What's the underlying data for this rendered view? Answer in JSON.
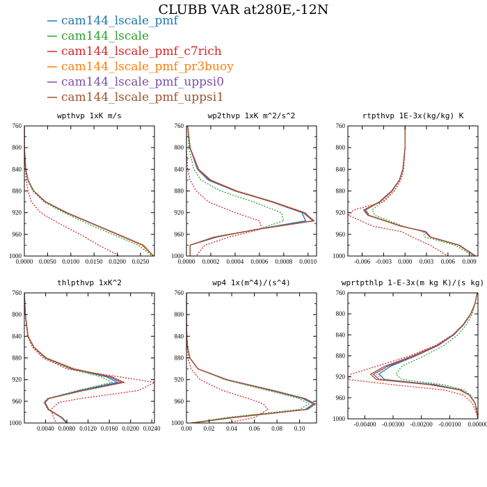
{
  "title": "CLUBB VAR at280E,-12N",
  "legend": [
    {
      "name": "cam144_lscale_pmf",
      "color": "#1f77b4"
    },
    {
      "name": "cam144_lscale",
      "color": "#2ca02c"
    },
    {
      "name": "cam144_lscale_pmf_c7rich",
      "color": "#d62728"
    },
    {
      "name": "cam144_lscale_pmf_pr3buoy",
      "color": "#ff7f0e"
    },
    {
      "name": "cam144_lscale_pmf_uppsi0",
      "color": "#7b4fa6"
    },
    {
      "name": "cam144_lscale_pmf_uppsi1",
      "color": "#a0522d"
    }
  ],
  "chart_data": [
    {
      "type": "line",
      "title": "wpthvp  1xK m/s",
      "y_ticks": [
        760,
        800,
        840,
        880,
        920,
        960,
        1000
      ],
      "y_reversed": true,
      "xlim": [
        0,
        0.028
      ],
      "x_ticks": [
        0,
        0.005,
        0.01,
        0.015,
        0.02,
        0.025
      ],
      "x_tick_labels": [
        "0.0000",
        "0.0050",
        "0.0100",
        "0.0150",
        "0.0200",
        "0.0250"
      ],
      "y": [
        760,
        800,
        840,
        860,
        880,
        900,
        920,
        940,
        960,
        980,
        1000
      ],
      "series": [
        {
          "values": [
            0,
            0,
            0.0003,
            0.0008,
            0.002,
            0.0045,
            0.009,
            0.0145,
            0.02,
            0.0255,
            0.0278
          ],
          "dash": false
        },
        {
          "values": [
            0,
            0,
            0.0003,
            0.0007,
            0.0018,
            0.0042,
            0.0085,
            0.0135,
            0.019,
            0.0245,
            0.0275
          ],
          "dash": true
        },
        {
          "values": [
            0,
            0,
            0.0002,
            0.0004,
            0.0008,
            0.0015,
            0.0035,
            0.0075,
            0.012,
            0.016,
            0.0205
          ],
          "dash": true
        },
        {
          "values": [
            0,
            0,
            0.0003,
            0.0008,
            0.002,
            0.0045,
            0.009,
            0.0145,
            0.0198,
            0.0252,
            0.0277
          ],
          "dash": true
        },
        {
          "values": [
            0,
            0,
            0.0003,
            0.0008,
            0.002,
            0.0046,
            0.0092,
            0.0147,
            0.0202,
            0.0256,
            0.0278
          ],
          "dash": false
        },
        {
          "values": [
            0,
            0,
            0.0003,
            0.0008,
            0.002,
            0.0045,
            0.009,
            0.0146,
            0.0201,
            0.0255,
            0.0278
          ],
          "dash": false
        }
      ]
    },
    {
      "type": "line",
      "title": "wp2thvp  1xK m^2/s^2",
      "y_ticks": [
        760,
        800,
        840,
        880,
        920,
        960,
        1000
      ],
      "y_reversed": true,
      "xlim": [
        0,
        0.00107
      ],
      "x_ticks": [
        0,
        0.0002,
        0.0004,
        0.0006,
        0.0008,
        0.001
      ],
      "x_tick_labels": [
        "0.0000",
        "0.0002",
        "0.0004",
        "0.0006",
        "0.0008",
        "0.0010"
      ],
      "y": [
        760,
        800,
        840,
        860,
        880,
        900,
        920,
        935,
        950,
        965,
        980,
        1000
      ],
      "series": [
        {
          "values": [
            1e-05,
            3e-05,
            9e-05,
            0.00018,
            0.0004,
            0.0007,
            0.00095,
            0.00098,
            0.0006,
            0.00025,
            3e-05,
            3e-05
          ],
          "dash": false
        },
        {
          "values": [
            1e-05,
            2e-05,
            6e-05,
            0.00012,
            0.00028,
            0.00055,
            0.00078,
            0.0008,
            0.0006,
            0.00023,
            3e-05,
            3e-05
          ],
          "dash": true
        },
        {
          "values": [
            0,
            0,
            1e-05,
            3e-05,
            8e-05,
            0.00018,
            0.0004,
            0.0006,
            0.00062,
            0.00035,
            0.00015,
            8e-05
          ],
          "dash": true
        },
        {
          "values": [
            1e-05,
            3e-05,
            0.0001,
            0.0002,
            0.00042,
            0.00072,
            0.00098,
            0.00104,
            0.0006,
            0.00022,
            3e-05,
            3e-05
          ],
          "dash": true
        },
        {
          "values": [
            1e-05,
            3e-05,
            9e-05,
            0.00019,
            0.0004,
            0.0007,
            0.00096,
            0.00104,
            0.0006,
            0.00024,
            3e-05,
            3e-05
          ],
          "dash": false
        },
        {
          "values": [
            1e-05,
            3e-05,
            0.0001,
            0.0002,
            0.00041,
            0.00071,
            0.00097,
            0.00105,
            0.00061,
            0.00023,
            3e-05,
            3e-05
          ],
          "dash": false
        }
      ]
    },
    {
      "type": "line",
      "title": "rtpthvp  1E-3x(kg/kg) K",
      "y_ticks": [
        760,
        800,
        840,
        880,
        920,
        960,
        1000
      ],
      "y_reversed": true,
      "xlim": [
        -0.008,
        0.0102
      ],
      "x_ticks": [
        -0.006,
        -0.003,
        0,
        0.003,
        0.006,
        0.009
      ],
      "x_tick_labels": [
        "-0.006",
        "-0.003",
        "0.000",
        "0.003",
        "0.006",
        "0.009"
      ],
      "y": [
        760,
        800,
        840,
        860,
        880,
        900,
        915,
        925,
        945,
        955,
        965,
        980,
        1000
      ],
      "series": [
        {
          "values": [
            0,
            0,
            -0.0003,
            -0.0008,
            -0.0018,
            -0.0035,
            -0.0055,
            -0.005,
            -0.0005,
            0.0028,
            0.0035,
            0.0075,
            0.0098
          ],
          "dash": false
        },
        {
          "values": [
            0,
            0,
            -0.0002,
            -0.0006,
            -0.0015,
            -0.0032,
            -0.0046,
            -0.0042,
            -0.0003,
            0.0025,
            0.0028,
            0.007,
            0.0096
          ],
          "dash": true
        },
        {
          "values": [
            0,
            0,
            -0.0002,
            -0.0006,
            -0.0015,
            -0.003,
            -0.0072,
            -0.0079,
            -0.0045,
            -0.0005,
            0.001,
            0.0035,
            0.006
          ],
          "dash": true
        },
        {
          "values": [
            0,
            0,
            -0.0003,
            -0.0008,
            -0.0018,
            -0.0035,
            -0.0055,
            -0.005,
            -0.0005,
            0.0028,
            0.0035,
            0.0075,
            0.0098
          ],
          "dash": true
        },
        {
          "values": [
            0,
            0,
            -0.0003,
            -0.0008,
            -0.0019,
            -0.0036,
            -0.0057,
            -0.0051,
            -0.0006,
            0.0029,
            0.0036,
            0.0076,
            0.0099
          ],
          "dash": false
        },
        {
          "values": [
            0,
            0,
            -0.0003,
            -0.0008,
            -0.0018,
            -0.0035,
            -0.0058,
            -0.0052,
            -0.0005,
            0.0027,
            0.0035,
            0.0075,
            0.0099
          ],
          "dash": false
        }
      ]
    },
    {
      "type": "line",
      "title": "thlpthvp  1xK^2",
      "y_ticks": [
        760,
        800,
        840,
        880,
        920,
        960,
        1000
      ],
      "y_reversed": true,
      "xlim": [
        0,
        0.0245
      ],
      "x_ticks": [
        0.004,
        0.008,
        0.012,
        0.016,
        0.02,
        0.024
      ],
      "x_tick_labels": [
        "0.0040",
        "0.0080",
        "0.0120",
        "0.0160",
        "0.0200",
        "0.0240"
      ],
      "y": [
        760,
        800,
        840,
        860,
        880,
        900,
        915,
        925,
        940,
        955,
        962,
        975,
        990,
        1000
      ],
      "series": [
        {
          "values": [
            0,
            0.0002,
            0.0007,
            0.0018,
            0.004,
            0.009,
            0.0155,
            0.0175,
            0.0105,
            0.0045,
            0.0038,
            0.0045,
            0.007,
            0.008
          ],
          "dash": false
        },
        {
          "values": [
            0,
            0.0002,
            0.0007,
            0.0017,
            0.0038,
            0.0085,
            0.0145,
            0.0165,
            0.01,
            0.0043,
            0.0037,
            0.0044,
            0.0069,
            0.0079
          ],
          "dash": true
        },
        {
          "values": [
            0,
            0.0002,
            0.0006,
            0.0015,
            0.0035,
            0.008,
            0.018,
            0.0245,
            0.0215,
            0.0105,
            0.0065,
            0.005,
            0.0055,
            0.006
          ],
          "dash": true
        },
        {
          "values": [
            0,
            0.0002,
            0.0007,
            0.0018,
            0.0042,
            0.0095,
            0.0165,
            0.0185,
            0.011,
            0.0046,
            0.0039,
            0.0046,
            0.0071,
            0.0081
          ],
          "dash": true
        },
        {
          "values": [
            0,
            0.0002,
            0.0007,
            0.0018,
            0.004,
            0.009,
            0.016,
            0.0182,
            0.0108,
            0.0045,
            0.0038,
            0.0045,
            0.007,
            0.008
          ],
          "dash": false
        },
        {
          "values": [
            0,
            0.0002,
            0.0007,
            0.0018,
            0.0041,
            0.0092,
            0.0165,
            0.0188,
            0.0112,
            0.0046,
            0.0039,
            0.0046,
            0.0071,
            0.0081
          ],
          "dash": false
        }
      ]
    },
    {
      "type": "line",
      "title": "wp4  1x(m^4)/(s^4)",
      "y_ticks": [
        760,
        800,
        840,
        880,
        920,
        960,
        1000
      ],
      "y_reversed": true,
      "xlim": [
        0,
        0.115
      ],
      "x_ticks": [
        0,
        0.02,
        0.04,
        0.06,
        0.08,
        0.1
      ],
      "x_tick_labels": [
        "0.00",
        "0.02",
        "0.04",
        "0.06",
        "0.08",
        "0.10"
      ],
      "y": [
        760,
        800,
        840,
        860,
        880,
        900,
        920,
        940,
        955,
        965,
        975,
        990,
        1000
      ],
      "series": [
        {
          "values": [
            0,
            0,
            0.0003,
            0.001,
            0.003,
            0.01,
            0.035,
            0.075,
            0.103,
            0.112,
            0.105,
            0.04,
            0.005
          ],
          "dash": false
        },
        {
          "values": [
            0,
            0,
            0.0003,
            0.001,
            0.003,
            0.01,
            0.034,
            0.072,
            0.1,
            0.108,
            0.1,
            0.035,
            0.004
          ],
          "dash": true
        },
        {
          "values": [
            0,
            0,
            0.0002,
            0.0006,
            0.0015,
            0.004,
            0.012,
            0.032,
            0.055,
            0.068,
            0.072,
            0.06,
            0.035
          ],
          "dash": true
        },
        {
          "values": [
            0,
            0,
            0.0003,
            0.001,
            0.003,
            0.01,
            0.035,
            0.076,
            0.104,
            0.113,
            0.106,
            0.041,
            0.005
          ],
          "dash": true
        },
        {
          "values": [
            0,
            0,
            0.0003,
            0.001,
            0.0031,
            0.0102,
            0.036,
            0.077,
            0.105,
            0.114,
            0.107,
            0.042,
            0.005
          ],
          "dash": false
        },
        {
          "values": [
            0,
            0,
            0.0003,
            0.001,
            0.003,
            0.0101,
            0.0355,
            0.076,
            0.104,
            0.114,
            0.106,
            0.041,
            0.005
          ],
          "dash": false
        }
      ]
    },
    {
      "type": "line",
      "title": "wprtpthlp  1-E-3x(m kg K)/(s kg)",
      "y_ticks": [
        760,
        800,
        840,
        880,
        920,
        960,
        1000
      ],
      "y_reversed": true,
      "xlim": [
        -0.0046,
        0
      ],
      "x_ticks": [
        -0.004,
        -0.003,
        -0.002,
        -0.001,
        0
      ],
      "x_tick_labels": [
        "-0.00400",
        "-0.00300",
        "-0.00200",
        "-0.00100",
        "0.00000"
      ],
      "y": [
        760,
        780,
        800,
        820,
        840,
        860,
        880,
        900,
        915,
        925,
        935,
        945,
        955,
        970,
        990,
        1000
      ],
      "series": [
        {
          "values": [
            -3e-05,
            -0.0001,
            -0.00025,
            -0.0005,
            -0.00085,
            -0.0014,
            -0.0022,
            -0.0031,
            -0.0035,
            -0.0033,
            -0.0015,
            -0.0006,
            -0.0003,
            -0.0001,
            -3e-05,
            0
          ],
          "dash": false
        },
        {
          "values": [
            -3e-05,
            -0.0001,
            -0.0002,
            -0.0004,
            -0.0007,
            -0.0012,
            -0.0019,
            -0.0027,
            -0.0029,
            -0.0027,
            -0.0012,
            -0.0005,
            -0.00025,
            -0.0001,
            -3e-05,
            0
          ],
          "dash": true
        },
        {
          "values": [
            -3e-05,
            -0.0001,
            -0.00025,
            -0.0005,
            -0.0009,
            -0.0015,
            -0.0024,
            -0.0036,
            -0.0045,
            -0.0046,
            -0.003,
            -0.0012,
            -0.0005,
            -0.0002,
            -5e-05,
            0
          ],
          "dash": true
        },
        {
          "values": [
            -3e-05,
            -0.0001,
            -0.00026,
            -0.00052,
            -0.00088,
            -0.00145,
            -0.0023,
            -0.0032,
            -0.0036,
            -0.0034,
            -0.0016,
            -0.00065,
            -0.0003,
            -0.0001,
            -3e-05,
            0
          ],
          "dash": true
        },
        {
          "values": [
            -3e-05,
            -0.0001,
            -0.00025,
            -0.0005,
            -0.00086,
            -0.0014,
            -0.0022,
            -0.0032,
            -0.0037,
            -0.0035,
            -0.0016,
            -0.0006,
            -0.0003,
            -0.0001,
            -3e-05,
            0
          ],
          "dash": false
        },
        {
          "values": [
            -3e-05,
            -0.0001,
            -0.00026,
            -0.00052,
            -0.00088,
            -0.00145,
            -0.0023,
            -0.0033,
            -0.0038,
            -0.0036,
            -0.0017,
            -0.00065,
            -0.0003,
            -0.0001,
            -3e-05,
            0
          ],
          "dash": false
        }
      ]
    }
  ]
}
